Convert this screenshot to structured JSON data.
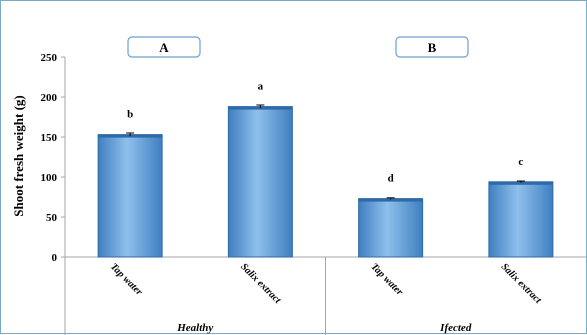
{
  "chart_data": {
    "type": "bar",
    "ylabel": "Shoot fresh weight (g)",
    "ylim": [
      0,
      250
    ],
    "yticks": [
      0,
      50,
      100,
      150,
      200,
      250
    ],
    "panels": [
      {
        "label": "A",
        "group": "Healthy"
      },
      {
        "label": "B",
        "group": "Ifected"
      }
    ],
    "categories": [
      "Tap water",
      "Salix extract",
      "Tap water",
      "Salix extract"
    ],
    "groups": [
      "Healthy",
      "Healthy",
      "Ifected",
      "Ifected"
    ],
    "values": [
      153,
      188,
      73,
      94
    ],
    "errors": [
      2,
      2,
      1,
      1
    ],
    "significance_letters": [
      "b",
      "a",
      "d",
      "c"
    ],
    "grid": false,
    "bar_color": "#5b9bd5"
  }
}
